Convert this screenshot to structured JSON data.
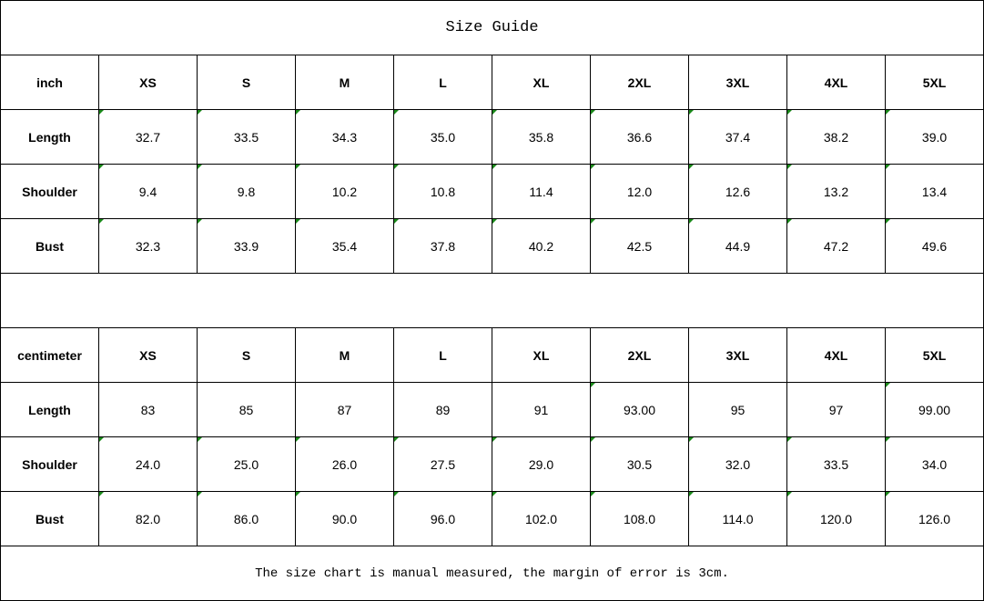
{
  "title": "Size Guide",
  "note": "The size chart is manual measured, the margin of error is 3cm.",
  "flag_color": "#1a8a1a",
  "tables": [
    {
      "unit": "inch",
      "sizes": [
        "XS",
        "S",
        "M",
        "L",
        "XL",
        "2XL",
        "3XL",
        "4XL",
        "5XL"
      ],
      "rows": [
        {
          "label": "Length",
          "values": [
            "32.7",
            "33.5",
            "34.3",
            "35.0",
            "35.8",
            "36.6",
            "37.4",
            "38.2",
            "39.0"
          ]
        },
        {
          "label": "Shoulder",
          "values": [
            "9.4",
            "9.8",
            "10.2",
            "10.8",
            "11.4",
            "12.0",
            "12.6",
            "13.2",
            "13.4"
          ]
        },
        {
          "label": "Bust",
          "values": [
            "32.3",
            "33.9",
            "35.4",
            "37.8",
            "40.2",
            "42.5",
            "44.9",
            "47.2",
            "49.6"
          ]
        }
      ]
    },
    {
      "unit": "centimeter",
      "sizes": [
        "XS",
        "S",
        "M",
        "L",
        "XL",
        "2XL",
        "3XL",
        "4XL",
        "5XL"
      ],
      "rows": [
        {
          "label": "Length",
          "values": [
            "83",
            "85",
            "87",
            "89",
            "91",
            "93.00",
            "95",
            "97",
            "99.00"
          ]
        },
        {
          "label": "Shoulder",
          "values": [
            "24.0",
            "25.0",
            "26.0",
            "27.5",
            "29.0",
            "30.5",
            "32.0",
            "33.5",
            "34.0"
          ]
        },
        {
          "label": "Bust",
          "values": [
            "82.0",
            "86.0",
            "90.0",
            "96.0",
            "102.0",
            "108.0",
            "114.0",
            "120.0",
            "126.0"
          ]
        }
      ]
    }
  ]
}
